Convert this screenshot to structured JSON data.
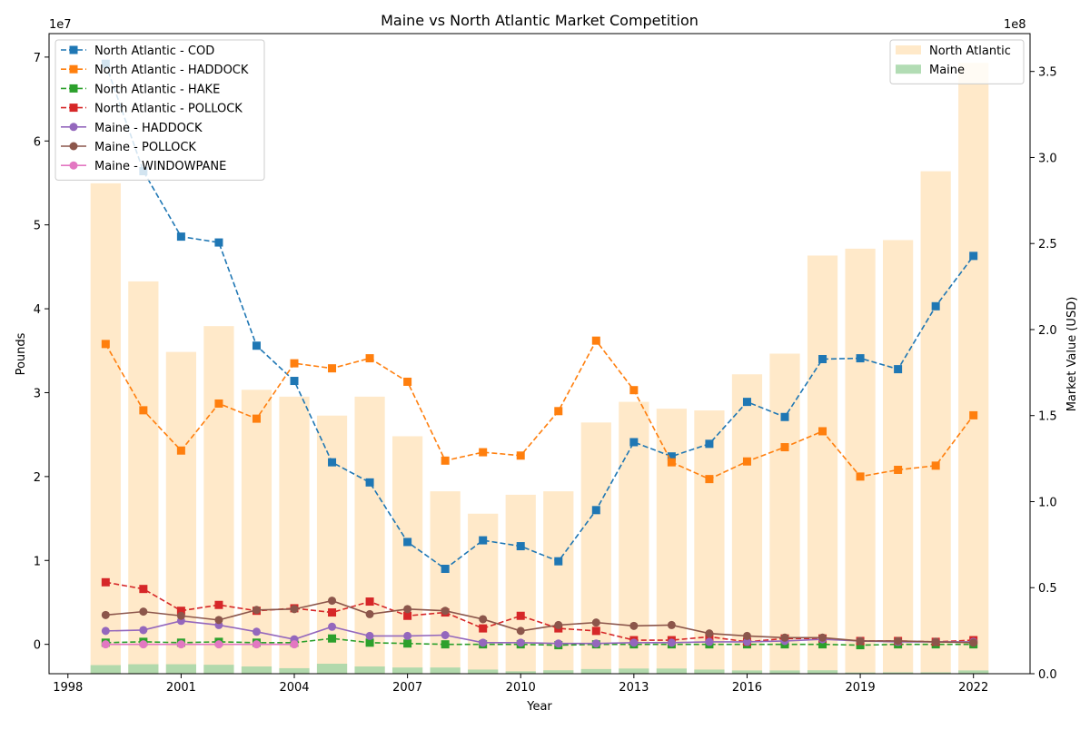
{
  "chart_data": {
    "type": "bar+line",
    "title": "Maine vs North Atlantic Market Competition",
    "xlabel": "Year",
    "ylabel_left": "Pounds",
    "ylabel_right": "Market Value (USD)",
    "left_offset_text": "1e7",
    "right_offset_text": "1e8",
    "xlim": [
      1997.5,
      2023.5
    ],
    "ylim_left": [
      -3.5,
      72.8
    ],
    "ylim_right": [
      0.0,
      3.72
    ],
    "x_ticks": [
      1998,
      2001,
      2004,
      2007,
      2010,
      2013,
      2016,
      2019,
      2022
    ],
    "x_tick_labels": [
      "1998",
      "2001",
      "2004",
      "2007",
      "2010",
      "2013",
      "2016",
      "2019",
      "2022"
    ],
    "y_left_ticks": [
      0,
      10,
      20,
      30,
      40,
      50,
      60,
      70
    ],
    "y_left_tick_labels": [
      "0",
      "1",
      "2",
      "3",
      "4",
      "5",
      "6",
      "7"
    ],
    "y_right_ticks": [
      0.0,
      0.5,
      1.0,
      1.5,
      2.0,
      2.5,
      3.0,
      3.5
    ],
    "y_right_tick_labels": [
      "0.0",
      "0.5",
      "1.0",
      "1.5",
      "2.0",
      "2.5",
      "3.0",
      "3.5"
    ],
    "years": [
      1999,
      2000,
      2001,
      2002,
      2003,
      2004,
      2005,
      2006,
      2007,
      2008,
      2009,
      2010,
      2011,
      2012,
      2013,
      2014,
      2015,
      2016,
      2017,
      2018,
      2019,
      2020,
      2021,
      2022
    ],
    "bar_series": [
      {
        "name": "North Atlantic",
        "color": "#ffe0b2",
        "alpha": 0.7,
        "values": [
          2.85,
          2.28,
          1.87,
          2.02,
          1.65,
          1.61,
          1.5,
          1.61,
          1.38,
          1.06,
          0.93,
          1.04,
          1.06,
          1.46,
          1.58,
          1.54,
          1.53,
          1.74,
          1.86,
          2.43,
          2.47,
          2.52,
          2.92,
          3.55
        ]
      },
      {
        "name": "Maine",
        "color": "#a5d6a7",
        "alpha": 0.85,
        "values": [
          0.05,
          0.055,
          0.055,
          0.052,
          0.042,
          0.032,
          0.058,
          0.042,
          0.036,
          0.036,
          0.024,
          0.014,
          0.02,
          0.027,
          0.03,
          0.03,
          0.024,
          0.019,
          0.019,
          0.02,
          0.007,
          0.008,
          0.008,
          0.019
        ]
      }
    ],
    "line_series": [
      {
        "name": "North Atlantic - COD",
        "color": "#1f77b4",
        "marker": "square",
        "dash": true,
        "values": [
          69.2,
          56.4,
          48.6,
          47.9,
          35.6,
          31.4,
          21.7,
          19.3,
          12.2,
          9.0,
          12.4,
          11.7,
          9.9,
          16.0,
          24.1,
          22.4,
          23.9,
          28.9,
          27.1,
          34.0,
          34.1,
          32.8,
          40.3,
          46.3
        ]
      },
      {
        "name": "North Atlantic - HADDOCK",
        "color": "#ff7f0e",
        "marker": "square",
        "dash": true,
        "values": [
          35.8,
          27.9,
          23.1,
          28.7,
          26.9,
          33.5,
          32.9,
          34.1,
          31.3,
          21.9,
          22.9,
          22.5,
          27.8,
          36.2,
          30.3,
          21.7,
          19.7,
          21.8,
          23.5,
          25.4,
          20.0,
          20.8,
          21.3,
          27.3
        ]
      },
      {
        "name": "North Atlantic - HAKE",
        "color": "#2ca02c",
        "marker": "square",
        "dash": true,
        "values": [
          0.2,
          0.3,
          0.2,
          0.3,
          0.2,
          0.2,
          0.7,
          0.2,
          0.1,
          0.0,
          0.0,
          0.0,
          -0.1,
          0.0,
          0.0,
          0.0,
          0.0,
          0.0,
          0.0,
          0.0,
          -0.1,
          0.0,
          0.0,
          0.0
        ]
      },
      {
        "name": "North Atlantic - POLLOCK",
        "color": "#d62728",
        "marker": "square",
        "dash": true,
        "values": [
          7.4,
          6.6,
          4.0,
          4.7,
          4.0,
          4.3,
          3.8,
          5.1,
          3.4,
          3.8,
          1.9,
          3.4,
          1.9,
          1.6,
          0.5,
          0.5,
          0.9,
          0.3,
          0.7,
          0.7,
          0.4,
          0.4,
          0.3,
          0.5
        ]
      },
      {
        "name": "Maine - HADDOCK",
        "color": "#9467bd",
        "marker": "circle",
        "dash": false,
        "values": [
          1.6,
          1.7,
          2.8,
          2.3,
          1.5,
          0.6,
          2.1,
          1.0,
          1.0,
          1.1,
          0.2,
          0.2,
          0.1,
          0.1,
          0.2,
          0.2,
          0.3,
          0.3,
          0.4,
          0.6,
          0.4,
          0.3,
          0.3,
          0.3
        ]
      },
      {
        "name": "Maine - POLLOCK",
        "color": "#8c564b",
        "marker": "circle",
        "dash": false,
        "values": [
          3.5,
          3.9,
          3.4,
          2.9,
          4.1,
          4.2,
          5.2,
          3.6,
          4.2,
          4.0,
          3.0,
          1.6,
          2.3,
          2.6,
          2.2,
          2.3,
          1.3,
          1.0,
          0.8,
          0.8,
          0.4,
          0.4,
          0.3,
          0.2
        ]
      },
      {
        "name": "Maine - WINDOWPANE",
        "color": "#e377c2",
        "marker": "circle",
        "dash": false,
        "years": [
          1999,
          2000,
          2001,
          2002,
          2003,
          2004
        ],
        "values": [
          0.0,
          0.0,
          0.0,
          0.0,
          0.0,
          0.0
        ]
      }
    ],
    "legend_lines_position": "upper left",
    "legend_bars_position": "upper right",
    "grid": false
  }
}
